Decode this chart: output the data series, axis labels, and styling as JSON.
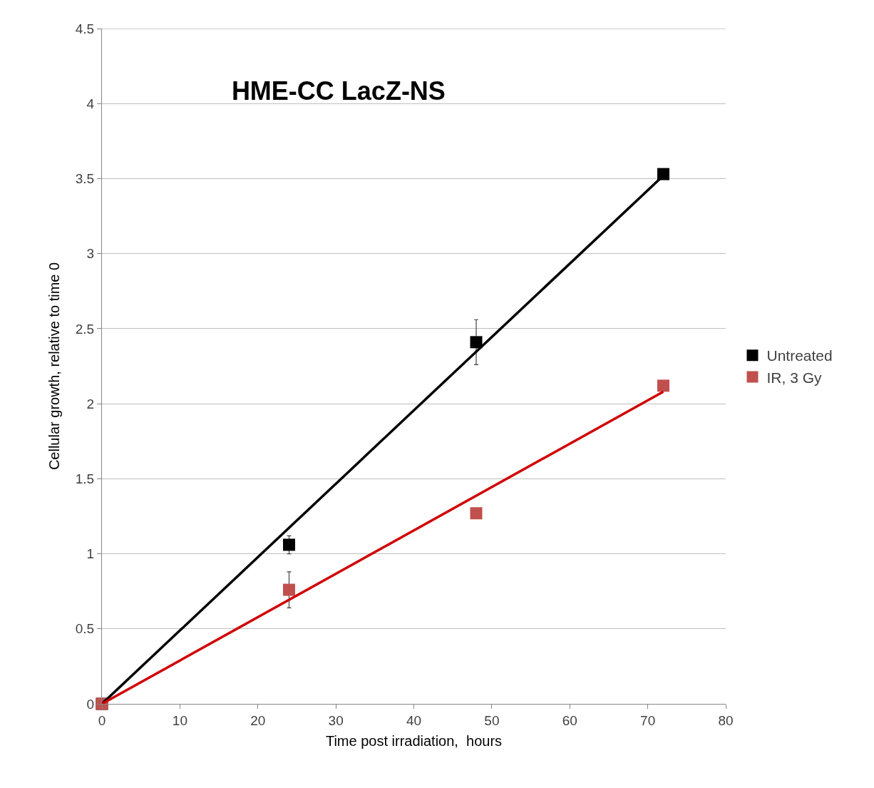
{
  "chart_data": {
    "type": "scatter",
    "title": "HME-CC LacZ-NS",
    "xlabel": "Time post irradiation,  hours",
    "ylabel": "Cellular growth, relative to time 0",
    "x": [
      0,
      24,
      48,
      72
    ],
    "series": [
      {
        "name": "Untreated",
        "color": "#000000",
        "marker": "square",
        "values": [
          0,
          1.06,
          2.41,
          3.53
        ],
        "errors": [
          null,
          0.06,
          0.15,
          null
        ]
      },
      {
        "name": "IR, 3 Gy",
        "color": "#c0504d",
        "marker": "square",
        "values": [
          0,
          0.76,
          1.27,
          2.12
        ],
        "errors": [
          null,
          0.12,
          null,
          null
        ]
      },
      {
        "type": "line",
        "color": "#000000",
        "marker": "none",
        "values": [
          0,
          null,
          null,
          3.52
        ]
      },
      {
        "type": "line",
        "color": "#d00000",
        "marker": "none",
        "values": [
          0,
          null,
          null,
          2.08
        ]
      }
    ],
    "xlim": [
      0,
      80
    ],
    "xticks": [
      0,
      10,
      20,
      30,
      40,
      50,
      60,
      70,
      80
    ],
    "ylim": [
      0,
      4.5
    ],
    "yticks": [
      0,
      0.5,
      1,
      1.5,
      2,
      2.5,
      3,
      3.5,
      4,
      4.5
    ],
    "grid": "y",
    "legend": "right"
  }
}
